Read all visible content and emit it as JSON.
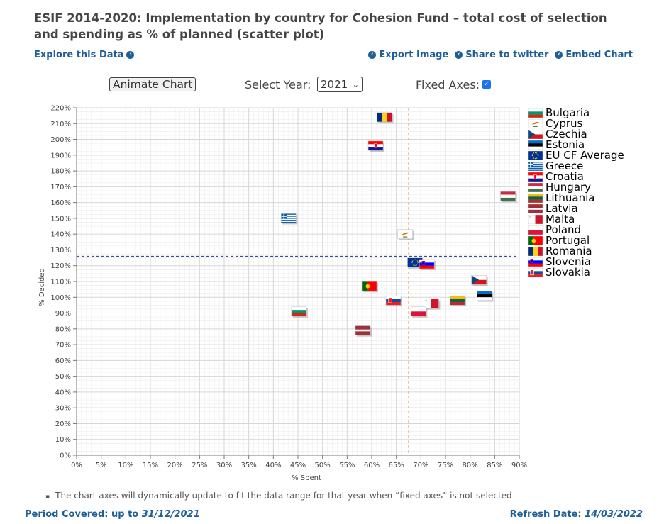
{
  "page": {
    "title": "ESIF 2014-2020: Implementation by country for Cohesion Fund – total cost of selection and spending as % of planned (scatter plot)",
    "explore_label": "Explore this Data",
    "export_label": "Export Image",
    "share_label": "Share to twitter",
    "embed_label": "Embed Chart"
  },
  "controls": {
    "animate_label": "Animate Chart",
    "year_label": "Select Year:",
    "year_value": "2021",
    "fixed_label": "Fixed Axes:",
    "fixed_checked": true
  },
  "footer": {
    "note": "The chart axes will dynamically update to fit the data range for that year when “fixed axes” is not selected",
    "period_label": "Period Covered: up to",
    "period_value": "31/12/2021",
    "refresh_label": "Refresh Date:",
    "refresh_value": "14/03/2022"
  },
  "chart_data": {
    "type": "scatter",
    "title": "ESIF 2014-2020: Implementation by country for Cohesion Fund – total cost of selection and spending as % of planned (scatter plot)",
    "xlabel": "% Spent",
    "ylabel": "% Decided",
    "xlim": [
      0,
      90
    ],
    "ylim": [
      0,
      220
    ],
    "xticks": [
      "0%",
      "5%",
      "10%",
      "15%",
      "20%",
      "25%",
      "30%",
      "35%",
      "40%",
      "45%",
      "50%",
      "55%",
      "60%",
      "65%",
      "70%",
      "75%",
      "80%",
      "85%",
      "90%"
    ],
    "yticks": [
      "0%",
      "10%",
      "20%",
      "30%",
      "40%",
      "50%",
      "60%",
      "70%",
      "80%",
      "90%",
      "100%",
      "110%",
      "120%",
      "130%",
      "140%",
      "150%",
      "160%",
      "170%",
      "180%",
      "190%",
      "200%",
      "210%",
      "220%"
    ],
    "reference_lines": {
      "x": 67.5,
      "y": 126
    },
    "points": [
      {
        "name": "Bulgaria",
        "x": 45.2,
        "y": 91,
        "flag": "bg"
      },
      {
        "name": "Cyprus",
        "x": 66.8,
        "y": 140,
        "flag": "cy"
      },
      {
        "name": "Czechia",
        "x": 81.8,
        "y": 111,
        "flag": "cz"
      },
      {
        "name": "Estonia",
        "x": 82.9,
        "y": 101,
        "flag": "ee"
      },
      {
        "name": "EU CF Average",
        "x": 68.8,
        "y": 122,
        "flag": "eu"
      },
      {
        "name": "Greece",
        "x": 43.1,
        "y": 150,
        "flag": "gr"
      },
      {
        "name": "Croatia",
        "x": 60.8,
        "y": 196,
        "flag": "hr"
      },
      {
        "name": "Hungary",
        "x": 87.7,
        "y": 164,
        "flag": "hu"
      },
      {
        "name": "Lithuania",
        "x": 77.4,
        "y": 98,
        "flag": "lt"
      },
      {
        "name": "Latvia",
        "x": 58.2,
        "y": 79,
        "flag": "lv"
      },
      {
        "name": "Malta",
        "x": 72.1,
        "y": 96,
        "flag": "mt"
      },
      {
        "name": "Poland",
        "x": 69.5,
        "y": 91,
        "flag": "pl"
      },
      {
        "name": "Portugal",
        "x": 59.5,
        "y": 107,
        "flag": "pt"
      },
      {
        "name": "Romania",
        "x": 62.6,
        "y": 214,
        "flag": "ro"
      },
      {
        "name": "Slovenia",
        "x": 71.2,
        "y": 121,
        "flag": "si"
      },
      {
        "name": "Slovakia",
        "x": 64.4,
        "y": 98,
        "flag": "sk"
      }
    ],
    "legend": [
      "Bulgaria",
      "Cyprus",
      "Czechia",
      "Estonia",
      "EU CF Average",
      "Greece",
      "Croatia",
      "Hungary",
      "Lithuania",
      "Latvia",
      "Malta",
      "Poland",
      "Portugal",
      "Romania",
      "Slovenia",
      "Slovakia"
    ],
    "legend_position": "right",
    "grid": true
  },
  "colors": {
    "link": "#1f5f97",
    "x_ref_line": "#e8962a",
    "y_ref_line": "#1f2f9e",
    "grid_major": "#d6d6d6",
    "grid_minor": "#ececec"
  }
}
